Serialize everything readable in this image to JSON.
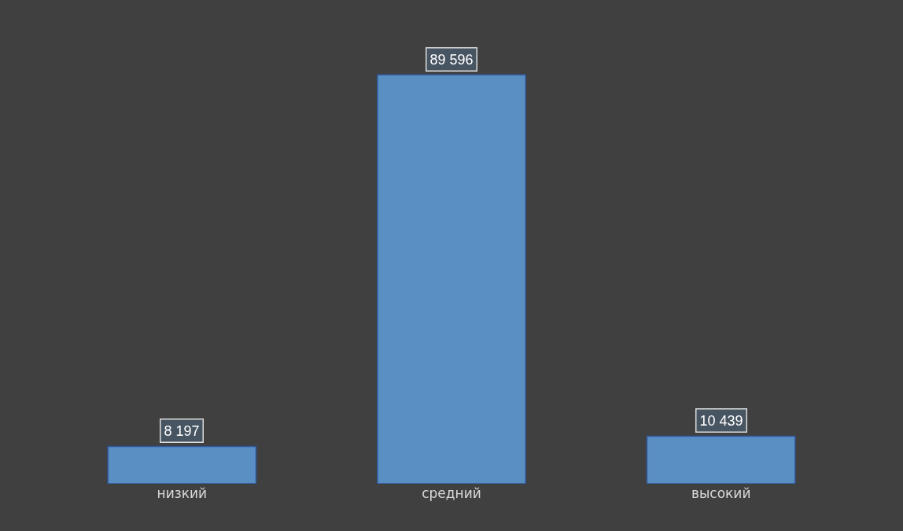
{
  "chart_data": {
    "type": "bar",
    "categories": [
      "низкий",
      "средний",
      "высокий"
    ],
    "values": [
      8197,
      89596,
      10439
    ],
    "value_labels": [
      "8 197",
      "89 596",
      "10 439"
    ],
    "color": "#5a8fc4"
  }
}
